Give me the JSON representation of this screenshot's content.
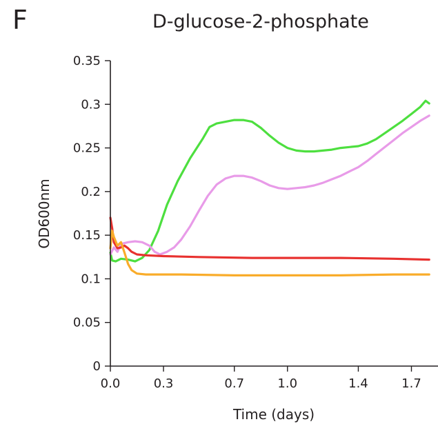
{
  "panel_label": "F",
  "chart_data": {
    "type": "line",
    "title": "D-glucose-2-phosphate",
    "xlabel": "Time (days)",
    "ylabel": "OD600nm",
    "xlim": [
      0,
      1.85
    ],
    "ylim": [
      0,
      0.35
    ],
    "xticks": [
      0.0,
      0.3,
      0.7,
      1.0,
      1.4,
      1.7
    ],
    "xtick_labels": [
      "0.0",
      "0.3",
      "0.7",
      "1.0",
      "1.4",
      "1.7"
    ],
    "yticks": [
      0,
      0.05,
      0.1,
      0.15,
      0.2,
      0.25,
      0.3,
      0.35
    ],
    "ytick_labels": [
      "0",
      "0.05",
      "0.1",
      "0.15",
      "0.2",
      "0.25",
      "0.3",
      "0.35"
    ],
    "grid": false,
    "legend": "none",
    "series": [
      {
        "color": "#4ddf3f",
        "points": [
          [
            0,
            0.13
          ],
          [
            0.01,
            0.121
          ],
          [
            0.03,
            0.12
          ],
          [
            0.06,
            0.123
          ],
          [
            0.1,
            0.122
          ],
          [
            0.14,
            0.12
          ],
          [
            0.18,
            0.124
          ],
          [
            0.22,
            0.133
          ],
          [
            0.27,
            0.155
          ],
          [
            0.32,
            0.185
          ],
          [
            0.38,
            0.212
          ],
          [
            0.45,
            0.238
          ],
          [
            0.52,
            0.26
          ],
          [
            0.56,
            0.274
          ],
          [
            0.6,
            0.278
          ],
          [
            0.65,
            0.28
          ],
          [
            0.7,
            0.282
          ],
          [
            0.75,
            0.282
          ],
          [
            0.8,
            0.28
          ],
          [
            0.85,
            0.273
          ],
          [
            0.9,
            0.264
          ],
          [
            0.95,
            0.256
          ],
          [
            1.0,
            0.25
          ],
          [
            1.05,
            0.247
          ],
          [
            1.1,
            0.246
          ],
          [
            1.15,
            0.246
          ],
          [
            1.2,
            0.247
          ],
          [
            1.25,
            0.248
          ],
          [
            1.3,
            0.25
          ],
          [
            1.35,
            0.251
          ],
          [
            1.4,
            0.252
          ],
          [
            1.45,
            0.255
          ],
          [
            1.5,
            0.26
          ],
          [
            1.55,
            0.267
          ],
          [
            1.6,
            0.274
          ],
          [
            1.65,
            0.281
          ],
          [
            1.7,
            0.289
          ],
          [
            1.75,
            0.297
          ],
          [
            1.78,
            0.304
          ],
          [
            1.8,
            0.301
          ]
        ]
      },
      {
        "color": "#e89be8",
        "points": [
          [
            0,
            0.128
          ],
          [
            0.02,
            0.136
          ],
          [
            0.04,
            0.131
          ],
          [
            0.06,
            0.14
          ],
          [
            0.1,
            0.142
          ],
          [
            0.14,
            0.143
          ],
          [
            0.18,
            0.142
          ],
          [
            0.22,
            0.138
          ],
          [
            0.25,
            0.131
          ],
          [
            0.28,
            0.128
          ],
          [
            0.32,
            0.131
          ],
          [
            0.36,
            0.136
          ],
          [
            0.4,
            0.145
          ],
          [
            0.45,
            0.16
          ],
          [
            0.5,
            0.178
          ],
          [
            0.55,
            0.195
          ],
          [
            0.6,
            0.208
          ],
          [
            0.65,
            0.215
          ],
          [
            0.7,
            0.218
          ],
          [
            0.75,
            0.218
          ],
          [
            0.8,
            0.216
          ],
          [
            0.85,
            0.212
          ],
          [
            0.9,
            0.207
          ],
          [
            0.95,
            0.204
          ],
          [
            1.0,
            0.203
          ],
          [
            1.05,
            0.204
          ],
          [
            1.1,
            0.205
          ],
          [
            1.15,
            0.207
          ],
          [
            1.2,
            0.21
          ],
          [
            1.25,
            0.214
          ],
          [
            1.3,
            0.218
          ],
          [
            1.35,
            0.223
          ],
          [
            1.4,
            0.228
          ],
          [
            1.45,
            0.235
          ],
          [
            1.5,
            0.243
          ],
          [
            1.55,
            0.251
          ],
          [
            1.6,
            0.259
          ],
          [
            1.65,
            0.267
          ],
          [
            1.7,
            0.274
          ],
          [
            1.75,
            0.281
          ],
          [
            1.8,
            0.287
          ]
        ]
      },
      {
        "color": "#e8312f",
        "points": [
          [
            0,
            0.17
          ],
          [
            0.01,
            0.158
          ],
          [
            0.02,
            0.142
          ],
          [
            0.04,
            0.135
          ],
          [
            0.06,
            0.136
          ],
          [
            0.08,
            0.138
          ],
          [
            0.1,
            0.135
          ],
          [
            0.12,
            0.131
          ],
          [
            0.15,
            0.128
          ],
          [
            0.2,
            0.127
          ],
          [
            0.3,
            0.126
          ],
          [
            0.5,
            0.125
          ],
          [
            0.8,
            0.124
          ],
          [
            1.0,
            0.124
          ],
          [
            1.3,
            0.124
          ],
          [
            1.6,
            0.123
          ],
          [
            1.8,
            0.122
          ]
        ]
      },
      {
        "color": "#f9ac2a",
        "points": [
          [
            0,
            0.135
          ],
          [
            0.01,
            0.155
          ],
          [
            0.02,
            0.148
          ],
          [
            0.04,
            0.138
          ],
          [
            0.06,
            0.142
          ],
          [
            0.08,
            0.13
          ],
          [
            0.1,
            0.117
          ],
          [
            0.12,
            0.11
          ],
          [
            0.15,
            0.106
          ],
          [
            0.2,
            0.105
          ],
          [
            0.4,
            0.105
          ],
          [
            0.7,
            0.104
          ],
          [
            1.0,
            0.104
          ],
          [
            1.3,
            0.104
          ],
          [
            1.6,
            0.105
          ],
          [
            1.8,
            0.105
          ]
        ]
      }
    ]
  }
}
